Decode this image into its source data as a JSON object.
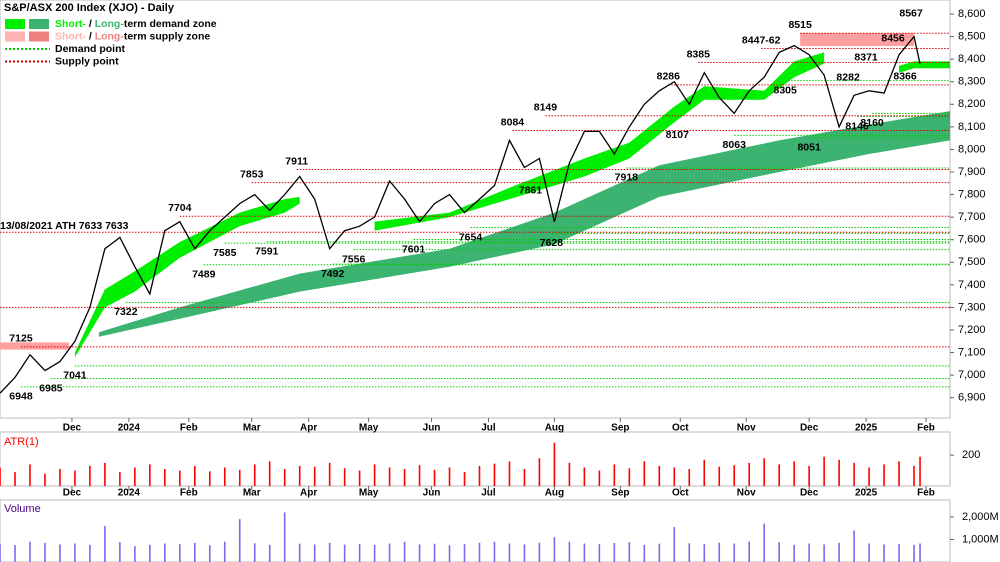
{
  "chart_data": {
    "type": "line",
    "title": "S&P/ASX 200 Index (XJO) - Daily",
    "color": "#000000",
    "x": [
      0,
      5,
      10,
      15,
      20,
      25,
      30,
      35,
      40,
      45,
      50,
      55,
      60,
      65,
      70,
      75,
      80,
      85,
      90,
      95,
      100,
      105,
      110,
      115,
      120,
      125,
      130,
      135,
      140,
      145,
      150,
      155,
      160,
      165,
      170,
      175,
      180,
      185,
      190,
      195,
      200,
      205,
      210,
      215,
      220,
      225,
      230,
      235,
      240,
      245,
      250,
      255,
      260,
      265,
      270,
      275,
      280,
      285,
      290,
      295,
      300,
      305,
      307
    ],
    "values": [
      6920,
      6990,
      7090,
      7020,
      7060,
      7150,
      7300,
      7560,
      7610,
      7480,
      7360,
      7640,
      7680,
      7560,
      7640,
      7700,
      7760,
      7800,
      7730,
      7800,
      7880,
      7780,
      7560,
      7640,
      7660,
      7700,
      7860,
      7780,
      7680,
      7760,
      7800,
      7720,
      7780,
      7840,
      8040,
      7920,
      7960,
      7680,
      7940,
      8080,
      8080,
      7980,
      8100,
      8200,
      8260,
      8300,
      8200,
      8340,
      8230,
      8160,
      8260,
      8320,
      8430,
      8460,
      8420,
      8330,
      8100,
      8240,
      8260,
      8250,
      8420,
      8500,
      8380
    ],
    "xlim": [
      0,
      317
    ],
    "xticks": [
      {
        "value": 24,
        "label": "Dec"
      },
      {
        "value": 43,
        "label": "2024"
      },
      {
        "value": 63,
        "label": "Feb"
      },
      {
        "value": 84,
        "label": "Mar"
      },
      {
        "value": 103,
        "label": "Apr"
      },
      {
        "value": 123,
        "label": "May"
      },
      {
        "value": 144,
        "label": "Jun"
      },
      {
        "value": 163,
        "label": "Jul"
      },
      {
        "value": 185,
        "label": "Aug"
      },
      {
        "value": 207,
        "label": "Sep"
      },
      {
        "value": 227,
        "label": "Oct"
      },
      {
        "value": 249,
        "label": "Nov"
      },
      {
        "value": 270,
        "label": "Dec"
      },
      {
        "value": 289,
        "label": "2025"
      },
      {
        "value": 309,
        "label": "Feb"
      }
    ],
    "ylim": [
      6810,
      8640
    ],
    "yticks": [
      {
        "value": 6900,
        "label": "6,900"
      },
      {
        "value": 7000,
        "label": "7,000"
      },
      {
        "value": 7100,
        "label": "7,100"
      },
      {
        "value": 7200,
        "label": "7,200"
      },
      {
        "value": 7300,
        "label": "7,300"
      },
      {
        "value": 7400,
        "label": "7,400"
      },
      {
        "value": 7500,
        "label": "7,500"
      },
      {
        "value": 7600,
        "label": "7,600"
      },
      {
        "value": 7700,
        "label": "7,700"
      },
      {
        "value": 7800,
        "label": "7,800"
      },
      {
        "value": 7900,
        "label": "7,900"
      },
      {
        "value": 8000,
        "label": "8,000"
      },
      {
        "value": 8100,
        "label": "8,100"
      },
      {
        "value": 8200,
        "label": "8,200"
      },
      {
        "value": 8300,
        "label": "8,300"
      },
      {
        "value": 8400,
        "label": "8,400"
      },
      {
        "value": 8500,
        "label": "8,500"
      },
      {
        "value": 8600,
        "label": "8,600"
      }
    ],
    "legend": [
      {
        "colors": [
          "#00ee00",
          "#3cb371"
        ],
        "parts": [
          "Short-",
          " / ",
          "Long-",
          "term demand zone"
        ]
      },
      {
        "colors": [
          "#ffb3b3",
          "#f08080"
        ],
        "parts": [
          "Short-",
          " / ",
          "Long-",
          "term supply zone"
        ]
      },
      {
        "style": "dotted",
        "colors": [
          "#00cc00"
        ],
        "parts": [
          "Demand point"
        ]
      },
      {
        "style": "dotted",
        "colors": [
          "#cc0000"
        ],
        "parts": [
          "Supply point"
        ]
      }
    ],
    "demand_zones": [
      {
        "color": "#3cb371",
        "x": [
          33,
          60,
          100,
          150,
          185,
          220,
          260,
          290,
          317
        ],
        "lower": [
          7170,
          7250,
          7370,
          7480,
          7580,
          7790,
          7900,
          7980,
          8040
        ],
        "upper": [
          7190,
          7300,
          7450,
          7560,
          7720,
          7930,
          8040,
          8110,
          8170
        ]
      },
      {
        "color": "#00ee00",
        "x": [
          25,
          35,
          45,
          60,
          80,
          95,
          100
        ],
        "lower": [
          7080,
          7300,
          7370,
          7520,
          7660,
          7720,
          7760
        ],
        "upper": [
          7100,
          7380,
          7460,
          7590,
          7720,
          7780,
          7790
        ]
      },
      {
        "color": "#00ee00",
        "x": [
          125,
          150,
          170,
          195,
          210,
          225,
          235,
          255,
          265,
          275
        ],
        "lower": [
          7640,
          7700,
          7780,
          7880,
          7960,
          8120,
          8220,
          8220,
          8320,
          8380
        ],
        "upper": [
          7680,
          7720,
          7830,
          7960,
          8030,
          8190,
          8280,
          8260,
          8390,
          8430
        ]
      },
      {
        "color": "#00ee00",
        "x": [
          300,
          305,
          317
        ],
        "lower": [
          8340,
          8360,
          8360
        ],
        "upper": [
          8370,
          8390,
          8390
        ]
      }
    ],
    "supply_zones": {
      "color": "#ffa0a0",
      "x0": [
        0,
        267
      ],
      "x1": [
        23,
        305
      ],
      "lower": [
        7113,
        8458
      ],
      "upper": [
        7145,
        8516
      ]
    },
    "demand_points": {
      "color": "#00cc00",
      "x": [
        7,
        17,
        25,
        42,
        68,
        75,
        89,
        111,
        118,
        138,
        157,
        184,
        209,
        245,
        262,
        270,
        286,
        291,
        302
      ],
      "values": [
        6948,
        6985,
        7041,
        7322,
        7489,
        7585,
        7591,
        7492,
        7556,
        7601,
        7654,
        7628,
        7918,
        8063,
        8305,
        8051,
        8146,
        8160,
        8366
      ]
    },
    "supply_points": {
      "color": "#dd0000",
      "x": [
        0,
        7,
        0,
        60,
        84,
        99,
        171,
        182,
        223,
        233,
        254,
        267
      ],
      "values": [
        7633,
        7125,
        7300,
        7704,
        7853,
        7911,
        8084,
        8149,
        8286,
        8385,
        8447,
        8515
      ]
    },
    "annotations": [
      {
        "x": 0,
        "value": 7633,
        "label": "13/08/2021 ATH 7633 7633",
        "position": "left"
      },
      {
        "x": 7,
        "value": 7125,
        "position": "above"
      },
      {
        "x": 7,
        "value": 6948,
        "position": "below"
      },
      {
        "x": 17,
        "value": 6985,
        "position": "below"
      },
      {
        "x": 25,
        "value": 7041,
        "position": "below"
      },
      {
        "x": 42,
        "value": 7322,
        "position": "below"
      },
      {
        "x": 60,
        "value": 7704,
        "position": "above"
      },
      {
        "x": 68,
        "value": 7489,
        "position": "below"
      },
      {
        "x": 75,
        "value": 7585,
        "position": "below"
      },
      {
        "x": 84,
        "value": 7853,
        "position": "above"
      },
      {
        "x": 89,
        "value": 7591,
        "position": "below"
      },
      {
        "x": 99,
        "value": 7911,
        "position": "above"
      },
      {
        "x": 111,
        "value": 7492,
        "position": "below"
      },
      {
        "x": 118,
        "value": 7556,
        "position": "below"
      },
      {
        "x": 138,
        "value": 7601,
        "position": "below"
      },
      {
        "x": 157,
        "value": 7654,
        "position": "below"
      },
      {
        "x": 171,
        "value": 8084,
        "position": "above"
      },
      {
        "x": 177,
        "value": 7861,
        "position": "below"
      },
      {
        "x": 182,
        "value": 8149,
        "position": "above"
      },
      {
        "x": 184,
        "value": 7628,
        "position": "below"
      },
      {
        "x": 209,
        "value": 7918,
        "position": "below"
      },
      {
        "x": 223,
        "value": 8286,
        "position": "above"
      },
      {
        "x": 226,
        "value": 8107,
        "position": "below"
      },
      {
        "x": 233,
        "value": 8385,
        "position": "above"
      },
      {
        "x": 245,
        "value": 8063,
        "position": "below"
      },
      {
        "x": 254,
        "value": 8447,
        "label": "8447-62",
        "position": "above"
      },
      {
        "x": 262,
        "value": 8305,
        "position": "below"
      },
      {
        "x": 267,
        "value": 8515,
        "position": "above"
      },
      {
        "x": 270,
        "value": 8051,
        "position": "below"
      },
      {
        "x": 283,
        "value": 8282,
        "position": "above"
      },
      {
        "x": 286,
        "value": 8146,
        "position": "below"
      },
      {
        "x": 289,
        "value": 8371,
        "position": "above"
      },
      {
        "x": 291,
        "value": 8160,
        "position": "below"
      },
      {
        "x": 298,
        "value": 8456,
        "position": "above"
      },
      {
        "x": 302,
        "value": 8366,
        "position": "below"
      },
      {
        "x": 304,
        "value": 8567,
        "position": "above"
      }
    ],
    "atr": {
      "type": "bar",
      "label": "ATR(1)",
      "color": "#ff0000",
      "ylim": [
        0,
        350
      ],
      "yticks": [
        200
      ],
      "values": [
        120,
        90,
        140,
        80,
        110,
        100,
        130,
        150,
        90,
        120,
        140,
        110,
        100,
        130,
        95,
        120,
        105,
        140,
        160,
        110,
        130,
        125,
        150,
        115,
        100,
        140,
        120,
        110,
        135,
        105,
        120,
        90,
        130,
        145,
        160,
        110,
        180,
        280,
        150,
        120,
        100,
        140,
        115,
        160,
        130,
        120,
        110,
        170,
        125,
        135,
        150,
        180,
        140,
        160,
        130,
        190,
        170,
        150,
        120,
        140,
        160,
        130,
        190
      ]
    },
    "volume": {
      "type": "bar",
      "label": "Volume",
      "color": "#7b68ee",
      "ylim": [
        0,
        2750
      ],
      "yticks": [
        {
          "value": 1000,
          "label": "1,000M"
        },
        {
          "value": 2000,
          "label": "2,000M"
        }
      ],
      "values": [
        800,
        750,
        900,
        850,
        780,
        820,
        760,
        1600,
        880,
        700,
        760,
        820,
        790,
        850,
        740,
        900,
        1900,
        830,
        760,
        2200,
        810,
        780,
        850,
        770,
        800,
        760,
        820,
        900,
        780,
        810,
        740,
        790,
        850,
        900,
        820,
        780,
        860,
        1100,
        900,
        820,
        790,
        840,
        880,
        760,
        810,
        1550,
        830,
        790,
        860,
        820,
        900,
        1700,
        880,
        760,
        820,
        780,
        850,
        1400,
        820,
        780,
        800,
        760,
        820
      ]
    }
  }
}
